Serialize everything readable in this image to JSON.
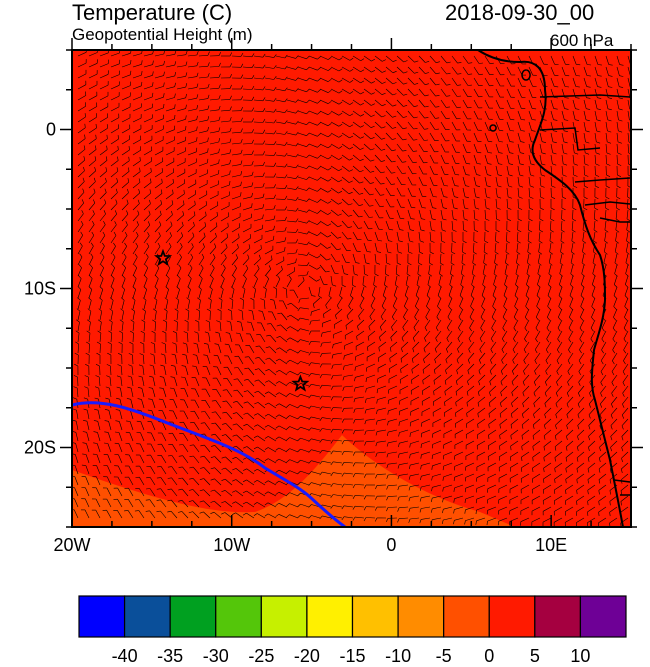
{
  "header": {
    "title_left": "Temperature (C)",
    "subtitle_left": "Geopotential Height (m)",
    "title_right": "2018-09-30_00",
    "subtitle_right": "600 hPa"
  },
  "map": {
    "lon_range": [
      -20,
      15
    ],
    "lat_range": [
      -25,
      5
    ],
    "x_ticks": [
      {
        "lon": -20,
        "label": "20W"
      },
      {
        "lon": -10,
        "label": "10W"
      },
      {
        "lon": 0,
        "label": "0"
      },
      {
        "lon": 10,
        "label": "10E"
      }
    ],
    "y_ticks": [
      {
        "lat": 0,
        "label": "0"
      },
      {
        "lat": -10,
        "label": "10S"
      },
      {
        "lat": -20,
        "label": "20S"
      }
    ],
    "markers": [
      {
        "name": "star-marker-1",
        "lon": -14.3,
        "lat": -8.1
      },
      {
        "name": "star-marker-2",
        "lon": -5.7,
        "lat": -16.0
      }
    ],
    "fill_main": "#ff1a00",
    "fill_cold": "#ff5000",
    "contour_color": "#1a1aff"
  },
  "colorbar": {
    "colors": [
      "#0000ff",
      "#0a4f9a",
      "#00a020",
      "#54c60a",
      "#c6f000",
      "#fff000",
      "#ffc000",
      "#ff8c00",
      "#ff5000",
      "#ff1a00",
      "#a50040",
      "#6e0096"
    ],
    "labels": [
      "-40",
      "-35",
      "-30",
      "-25",
      "-20",
      "-15",
      "-10",
      "-5",
      "0",
      "5",
      "10"
    ]
  }
}
